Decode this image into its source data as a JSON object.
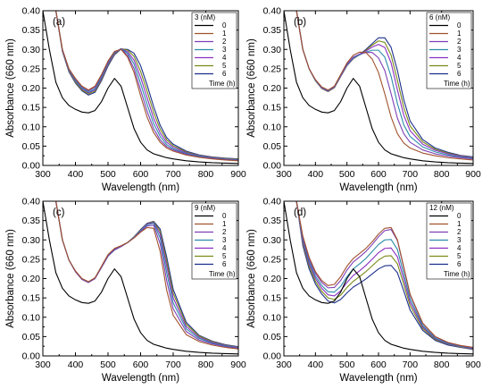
{
  "colors": [
    "#000000",
    "#a0522d",
    "#7b3fb5",
    "#2b8ca8",
    "#8a2fc2",
    "#7a8a16",
    "#1c2f8c"
  ],
  "chart_data": [
    {
      "type": "line",
      "panel_label": "(a)",
      "legend_title": "3 (nM)",
      "legend_subtitle": "Time (h)",
      "xlabel": "Wavelength (nm)",
      "ylabel": "Absorbance (660 nm)",
      "xlim": [
        300,
        900
      ],
      "ylim": [
        0.0,
        0.4
      ],
      "x_ticks": [
        "300",
        "400",
        "500",
        "600",
        "700",
        "800",
        "900"
      ],
      "y_ticks": [
        "0.00",
        "0.05",
        "0.10",
        "0.15",
        "0.20",
        "0.25",
        "0.30",
        "0.35",
        "0.40"
      ],
      "x": [
        300,
        320,
        340,
        360,
        380,
        400,
        420,
        440,
        460,
        480,
        500,
        520,
        540,
        560,
        580,
        600,
        620,
        640,
        660,
        680,
        700,
        740,
        780,
        820,
        860,
        900
      ],
      "series": [
        {
          "name": "0",
          "values": [
            0.4,
            0.3,
            0.215,
            0.175,
            0.155,
            0.145,
            0.138,
            0.136,
            0.142,
            0.165,
            0.2,
            0.225,
            0.205,
            0.15,
            0.095,
            0.06,
            0.04,
            0.03,
            0.025,
            0.02,
            0.017,
            0.012,
            0.009,
            0.007,
            0.006,
            0.005
          ]
        },
        {
          "name": "1",
          "values": [
            0.4,
            0.4,
            0.4,
            0.3,
            0.25,
            0.225,
            0.205,
            0.195,
            0.205,
            0.235,
            0.27,
            0.295,
            0.3,
            0.28,
            0.24,
            0.18,
            0.125,
            0.085,
            0.06,
            0.045,
            0.037,
            0.027,
            0.021,
            0.017,
            0.014,
            0.012
          ]
        },
        {
          "name": "2",
          "values": [
            0.4,
            0.4,
            0.4,
            0.3,
            0.25,
            0.223,
            0.203,
            0.193,
            0.202,
            0.232,
            0.268,
            0.294,
            0.301,
            0.285,
            0.25,
            0.195,
            0.14,
            0.095,
            0.066,
            0.049,
            0.04,
            0.029,
            0.022,
            0.018,
            0.015,
            0.013
          ]
        },
        {
          "name": "3",
          "values": [
            0.4,
            0.4,
            0.4,
            0.298,
            0.248,
            0.22,
            0.2,
            0.19,
            0.198,
            0.228,
            0.265,
            0.292,
            0.302,
            0.29,
            0.262,
            0.212,
            0.158,
            0.108,
            0.075,
            0.054,
            0.043,
            0.031,
            0.024,
            0.019,
            0.016,
            0.014
          ]
        },
        {
          "name": "4",
          "values": [
            0.4,
            0.4,
            0.4,
            0.297,
            0.246,
            0.218,
            0.198,
            0.188,
            0.195,
            0.225,
            0.262,
            0.29,
            0.302,
            0.294,
            0.272,
            0.228,
            0.175,
            0.122,
            0.084,
            0.06,
            0.047,
            0.033,
            0.025,
            0.02,
            0.017,
            0.015
          ]
        },
        {
          "name": "5",
          "values": [
            0.4,
            0.4,
            0.4,
            0.296,
            0.244,
            0.215,
            0.195,
            0.185,
            0.192,
            0.222,
            0.26,
            0.288,
            0.302,
            0.298,
            0.282,
            0.243,
            0.192,
            0.137,
            0.094,
            0.066,
            0.051,
            0.035,
            0.026,
            0.021,
            0.018,
            0.016
          ]
        },
        {
          "name": "6",
          "values": [
            0.4,
            0.4,
            0.4,
            0.295,
            0.242,
            0.213,
            0.193,
            0.182,
            0.189,
            0.219,
            0.257,
            0.286,
            0.301,
            0.3,
            0.29,
            0.258,
            0.208,
            0.152,
            0.104,
            0.072,
            0.055,
            0.037,
            0.027,
            0.022,
            0.019,
            0.017
          ]
        }
      ]
    },
    {
      "type": "line",
      "panel_label": "(b)",
      "legend_title": "6 (nM)",
      "legend_subtitle": "Time (h)",
      "xlabel": "Wavelength (nm)",
      "ylabel": "Absorbance (660 nm)",
      "xlim": [
        300,
        900
      ],
      "ylim": [
        0.0,
        0.4
      ],
      "x_ticks": [
        "300",
        "400",
        "500",
        "600",
        "700",
        "800",
        "900"
      ],
      "y_ticks": [
        "0.00",
        "0.05",
        "0.10",
        "0.15",
        "0.20",
        "0.25",
        "0.30",
        "0.35",
        "0.40"
      ],
      "x": [
        300,
        320,
        340,
        360,
        380,
        400,
        420,
        440,
        460,
        480,
        500,
        520,
        540,
        560,
        580,
        600,
        620,
        640,
        660,
        680,
        700,
        740,
        780,
        820,
        860,
        900
      ],
      "series": [
        {
          "name": "0",
          "values": [
            0.4,
            0.3,
            0.215,
            0.175,
            0.155,
            0.145,
            0.138,
            0.136,
            0.142,
            0.165,
            0.2,
            0.225,
            0.205,
            0.15,
            0.095,
            0.06,
            0.04,
            0.03,
            0.025,
            0.02,
            0.017,
            0.012,
            0.009,
            0.007,
            0.006,
            0.005
          ]
        },
        {
          "name": "1",
          "values": [
            0.4,
            0.4,
            0.4,
            0.3,
            0.25,
            0.222,
            0.203,
            0.195,
            0.205,
            0.235,
            0.265,
            0.285,
            0.293,
            0.292,
            0.275,
            0.24,
            0.185,
            0.125,
            0.082,
            0.058,
            0.045,
            0.032,
            0.025,
            0.02,
            0.017,
            0.014
          ]
        },
        {
          "name": "2",
          "values": [
            0.4,
            0.4,
            0.4,
            0.3,
            0.25,
            0.221,
            0.202,
            0.194,
            0.204,
            0.233,
            0.262,
            0.28,
            0.288,
            0.292,
            0.292,
            0.278,
            0.245,
            0.185,
            0.122,
            0.082,
            0.06,
            0.04,
            0.03,
            0.024,
            0.02,
            0.017
          ]
        },
        {
          "name": "3",
          "values": [
            0.4,
            0.4,
            0.4,
            0.3,
            0.25,
            0.22,
            0.201,
            0.193,
            0.203,
            0.232,
            0.26,
            0.278,
            0.286,
            0.293,
            0.298,
            0.298,
            0.28,
            0.23,
            0.16,
            0.105,
            0.075,
            0.048,
            0.035,
            0.027,
            0.022,
            0.019
          ]
        },
        {
          "name": "4",
          "values": [
            0.4,
            0.4,
            0.4,
            0.3,
            0.25,
            0.22,
            0.2,
            0.192,
            0.202,
            0.231,
            0.259,
            0.277,
            0.286,
            0.296,
            0.306,
            0.313,
            0.305,
            0.265,
            0.195,
            0.13,
            0.09,
            0.055,
            0.039,
            0.03,
            0.024,
            0.02
          ]
        },
        {
          "name": "5",
          "values": [
            0.4,
            0.4,
            0.4,
            0.3,
            0.25,
            0.219,
            0.199,
            0.191,
            0.201,
            0.23,
            0.258,
            0.276,
            0.286,
            0.298,
            0.311,
            0.322,
            0.318,
            0.285,
            0.22,
            0.15,
            0.102,
            0.061,
            0.042,
            0.032,
            0.025,
            0.021
          ]
        },
        {
          "name": "6",
          "values": [
            0.4,
            0.4,
            0.4,
            0.3,
            0.25,
            0.219,
            0.199,
            0.191,
            0.201,
            0.23,
            0.258,
            0.276,
            0.287,
            0.3,
            0.315,
            0.33,
            0.33,
            0.305,
            0.245,
            0.17,
            0.115,
            0.067,
            0.045,
            0.034,
            0.026,
            0.022
          ]
        }
      ]
    },
    {
      "type": "line",
      "panel_label": "(c)",
      "legend_title": "9 (nM)",
      "legend_subtitle": "Time (h)",
      "xlabel": "Wavelength (nm)",
      "ylabel": "Absorbance (660 nm)",
      "xlim": [
        300,
        900
      ],
      "ylim": [
        0.0,
        0.4
      ],
      "x_ticks": [
        "300",
        "400",
        "500",
        "600",
        "700",
        "800",
        "900"
      ],
      "y_ticks": [
        "0.00",
        "0.05",
        "0.10",
        "0.15",
        "0.20",
        "0.25",
        "0.30",
        "0.35",
        "0.40"
      ],
      "x": [
        300,
        320,
        340,
        360,
        380,
        400,
        420,
        440,
        460,
        480,
        500,
        520,
        540,
        560,
        580,
        600,
        620,
        640,
        660,
        680,
        700,
        740,
        780,
        820,
        860,
        900
      ],
      "series": [
        {
          "name": "0",
          "values": [
            0.4,
            0.3,
            0.215,
            0.175,
            0.155,
            0.145,
            0.138,
            0.136,
            0.142,
            0.165,
            0.2,
            0.225,
            0.205,
            0.15,
            0.095,
            0.06,
            0.04,
            0.03,
            0.025,
            0.02,
            0.017,
            0.012,
            0.009,
            0.007,
            0.006,
            0.005
          ]
        },
        {
          "name": "1",
          "values": [
            0.4,
            0.4,
            0.4,
            0.3,
            0.248,
            0.22,
            0.2,
            0.192,
            0.202,
            0.232,
            0.262,
            0.278,
            0.285,
            0.293,
            0.305,
            0.32,
            0.332,
            0.33,
            0.27,
            0.17,
            0.105,
            0.055,
            0.037,
            0.028,
            0.022,
            0.018
          ]
        },
        {
          "name": "2",
          "values": [
            0.4,
            0.4,
            0.4,
            0.3,
            0.248,
            0.219,
            0.199,
            0.191,
            0.201,
            0.23,
            0.26,
            0.276,
            0.284,
            0.293,
            0.306,
            0.322,
            0.336,
            0.338,
            0.29,
            0.195,
            0.122,
            0.063,
            0.041,
            0.031,
            0.024,
            0.02
          ]
        },
        {
          "name": "3",
          "values": [
            0.4,
            0.4,
            0.4,
            0.3,
            0.248,
            0.219,
            0.199,
            0.191,
            0.201,
            0.23,
            0.259,
            0.275,
            0.284,
            0.293,
            0.307,
            0.324,
            0.339,
            0.343,
            0.305,
            0.215,
            0.137,
            0.07,
            0.045,
            0.033,
            0.026,
            0.021
          ]
        },
        {
          "name": "4",
          "values": [
            0.4,
            0.4,
            0.4,
            0.3,
            0.248,
            0.218,
            0.198,
            0.19,
            0.2,
            0.229,
            0.258,
            0.274,
            0.283,
            0.293,
            0.307,
            0.325,
            0.341,
            0.345,
            0.315,
            0.232,
            0.15,
            0.076,
            0.048,
            0.035,
            0.027,
            0.022
          ]
        },
        {
          "name": "5",
          "values": [
            0.4,
            0.4,
            0.4,
            0.3,
            0.248,
            0.218,
            0.198,
            0.19,
            0.2,
            0.229,
            0.258,
            0.274,
            0.283,
            0.293,
            0.308,
            0.326,
            0.342,
            0.347,
            0.322,
            0.245,
            0.162,
            0.082,
            0.051,
            0.037,
            0.028,
            0.023
          ]
        },
        {
          "name": "6",
          "values": [
            0.4,
            0.4,
            0.4,
            0.3,
            0.248,
            0.218,
            0.198,
            0.19,
            0.2,
            0.229,
            0.258,
            0.274,
            0.283,
            0.293,
            0.308,
            0.327,
            0.343,
            0.348,
            0.328,
            0.256,
            0.172,
            0.087,
            0.053,
            0.038,
            0.029,
            0.024
          ]
        }
      ]
    },
    {
      "type": "line",
      "panel_label": "(d)",
      "legend_title": "12 (nM)",
      "legend_subtitle": "Time (h)",
      "xlabel": "Wavelength (nm)",
      "ylabel": "Absorbance (660 nm)",
      "xlim": [
        300,
        900
      ],
      "ylim": [
        0.0,
        0.4
      ],
      "x_ticks": [
        "300",
        "400",
        "500",
        "600",
        "700",
        "800",
        "900"
      ],
      "y_ticks": [
        "0.00",
        "0.05",
        "0.10",
        "0.15",
        "0.20",
        "0.25",
        "0.30",
        "0.35",
        "0.40"
      ],
      "x": [
        300,
        320,
        340,
        360,
        380,
        400,
        420,
        440,
        460,
        480,
        500,
        520,
        540,
        560,
        580,
        600,
        620,
        640,
        660,
        680,
        700,
        740,
        780,
        820,
        860,
        900
      ],
      "series": [
        {
          "name": "0",
          "values": [
            0.4,
            0.3,
            0.215,
            0.175,
            0.155,
            0.145,
            0.138,
            0.136,
            0.142,
            0.165,
            0.2,
            0.225,
            0.205,
            0.15,
            0.095,
            0.06,
            0.04,
            0.03,
            0.025,
            0.02,
            0.017,
            0.012,
            0.009,
            0.007,
            0.006,
            0.005
          ]
        },
        {
          "name": "1",
          "values": [
            0.4,
            0.4,
            0.4,
            0.31,
            0.255,
            0.218,
            0.195,
            0.182,
            0.185,
            0.205,
            0.232,
            0.252,
            0.265,
            0.278,
            0.295,
            0.315,
            0.33,
            0.332,
            0.3,
            0.23,
            0.16,
            0.085,
            0.05,
            0.035,
            0.027,
            0.022
          ]
        },
        {
          "name": "2",
          "values": [
            0.4,
            0.4,
            0.4,
            0.305,
            0.25,
            0.213,
            0.19,
            0.176,
            0.177,
            0.195,
            0.222,
            0.243,
            0.256,
            0.27,
            0.288,
            0.308,
            0.324,
            0.327,
            0.298,
            0.228,
            0.158,
            0.084,
            0.049,
            0.034,
            0.026,
            0.021
          ]
        },
        {
          "name": "3",
          "values": [
            0.4,
            0.4,
            0.4,
            0.3,
            0.244,
            0.206,
            0.182,
            0.166,
            0.165,
            0.18,
            0.205,
            0.225,
            0.238,
            0.252,
            0.27,
            0.288,
            0.3,
            0.301,
            0.275,
            0.212,
            0.148,
            0.079,
            0.046,
            0.032,
            0.025,
            0.02
          ]
        },
        {
          "name": "4",
          "values": [
            0.4,
            0.4,
            0.4,
            0.295,
            0.238,
            0.2,
            0.175,
            0.158,
            0.155,
            0.168,
            0.19,
            0.208,
            0.22,
            0.234,
            0.25,
            0.267,
            0.278,
            0.279,
            0.256,
            0.198,
            0.139,
            0.075,
            0.044,
            0.031,
            0.024,
            0.019
          ]
        },
        {
          "name": "5",
          "values": [
            0.4,
            0.4,
            0.4,
            0.29,
            0.232,
            0.193,
            0.167,
            0.15,
            0.146,
            0.157,
            0.177,
            0.193,
            0.205,
            0.218,
            0.233,
            0.248,
            0.258,
            0.259,
            0.238,
            0.185,
            0.13,
            0.071,
            0.042,
            0.03,
            0.023,
            0.018
          ]
        },
        {
          "name": "6",
          "values": [
            0.4,
            0.4,
            0.4,
            0.285,
            0.225,
            0.186,
            0.16,
            0.142,
            0.137,
            0.146,
            0.163,
            0.178,
            0.188,
            0.199,
            0.212,
            0.225,
            0.233,
            0.234,
            0.215,
            0.168,
            0.119,
            0.066,
            0.04,
            0.028,
            0.022,
            0.017
          ]
        }
      ]
    }
  ]
}
